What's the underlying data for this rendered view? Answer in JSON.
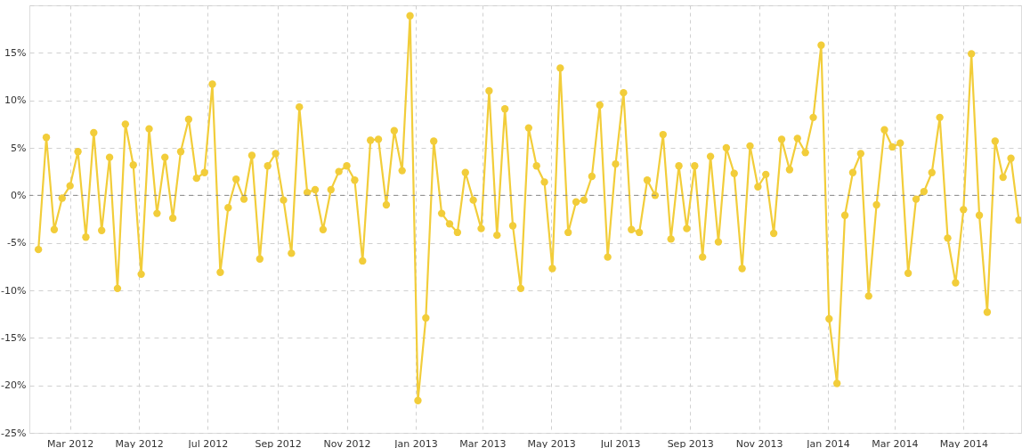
{
  "chart_data": {
    "type": "line",
    "x": [
      "2012-02-02",
      "2012-02-09",
      "2012-02-16",
      "2012-02-23",
      "2012-03-01",
      "2012-03-08",
      "2012-03-15",
      "2012-03-22",
      "2012-03-29",
      "2012-04-05",
      "2012-04-12",
      "2012-04-19",
      "2012-04-26",
      "2012-05-03",
      "2012-05-10",
      "2012-05-17",
      "2012-05-24",
      "2012-05-31",
      "2012-06-07",
      "2012-06-14",
      "2012-06-21",
      "2012-06-28",
      "2012-07-05",
      "2012-07-12",
      "2012-07-19",
      "2012-07-26",
      "2012-08-02",
      "2012-08-09",
      "2012-08-16",
      "2012-08-23",
      "2012-08-30",
      "2012-09-06",
      "2012-09-13",
      "2012-09-20",
      "2012-09-27",
      "2012-10-04",
      "2012-10-11",
      "2012-10-18",
      "2012-10-25",
      "2012-11-01",
      "2012-11-08",
      "2012-11-15",
      "2012-11-22",
      "2012-11-29",
      "2012-12-06",
      "2012-12-13",
      "2012-12-20",
      "2012-12-27",
      "2013-01-03",
      "2013-01-10",
      "2013-01-17",
      "2013-01-24",
      "2013-01-31",
      "2013-02-07",
      "2013-02-14",
      "2013-02-21",
      "2013-02-28",
      "2013-03-07",
      "2013-03-14",
      "2013-03-21",
      "2013-03-28",
      "2013-04-04",
      "2013-04-11",
      "2013-04-18",
      "2013-04-25",
      "2013-05-02",
      "2013-05-09",
      "2013-05-16",
      "2013-05-23",
      "2013-05-30",
      "2013-06-06",
      "2013-06-13",
      "2013-06-20",
      "2013-06-27",
      "2013-07-04",
      "2013-07-11",
      "2013-07-18",
      "2013-07-25",
      "2013-08-01",
      "2013-08-08",
      "2013-08-15",
      "2013-08-22",
      "2013-08-29",
      "2013-09-05",
      "2013-09-12",
      "2013-09-19",
      "2013-09-26",
      "2013-10-03",
      "2013-10-10",
      "2013-10-17",
      "2013-10-24",
      "2013-10-31",
      "2013-11-07",
      "2013-11-14",
      "2013-11-21",
      "2013-11-28",
      "2013-12-05",
      "2013-12-12",
      "2013-12-19",
      "2013-12-26",
      "2014-01-02",
      "2014-01-09",
      "2014-01-16",
      "2014-01-23",
      "2014-01-30",
      "2014-02-06",
      "2014-02-13",
      "2014-02-20",
      "2014-02-27",
      "2014-03-06",
      "2014-03-13",
      "2014-03-20",
      "2014-03-27",
      "2014-04-03",
      "2014-04-10",
      "2014-04-17",
      "2014-04-24",
      "2014-05-01",
      "2014-05-08",
      "2014-05-15",
      "2014-05-22",
      "2014-05-29",
      "2014-06-05",
      "2014-06-12",
      "2014-06-19"
    ],
    "series": [
      {
        "color": "#f2cd3a",
        "values": [
          -5.7,
          6.1,
          -3.6,
          -0.3,
          1.0,
          4.6,
          -4.4,
          6.6,
          -3.7,
          4.0,
          -9.8,
          7.5,
          3.2,
          -8.3,
          7.0,
          -1.9,
          4.0,
          -2.4,
          4.6,
          8.0,
          1.8,
          2.4,
          11.7,
          -8.1,
          -1.3,
          1.7,
          -0.4,
          4.2,
          -6.7,
          3.1,
          4.4,
          -0.5,
          -6.1,
          9.3,
          0.3,
          0.6,
          -3.6,
          0.6,
          2.5,
          3.1,
          1.6,
          -6.9,
          5.8,
          5.9,
          -1.0,
          6.8,
          2.6,
          18.9,
          -21.6,
          -12.9,
          5.7,
          -1.9,
          -3.0,
          -3.9,
          2.4,
          -0.5,
          -3.5,
          11.0,
          -4.2,
          9.1,
          -3.2,
          -9.8,
          7.1,
          3.1,
          1.4,
          -7.7,
          13.4,
          -3.9,
          -0.7,
          -0.5,
          2.0,
          9.5,
          -6.5,
          3.3,
          10.8,
          -3.6,
          -3.9,
          1.6,
          0.0,
          6.4,
          -4.6,
          3.1,
          -3.5,
          3.1,
          -6.5,
          4.1,
          -4.9,
          5.0,
          2.3,
          -7.7,
          5.2,
          0.9,
          2.2,
          -4.0,
          5.9,
          2.7,
          6.0,
          4.5,
          8.2,
          15.8,
          -13.0,
          -19.8,
          -2.1,
          2.4,
          4.4,
          -10.6,
          -1.0,
          6.9,
          5.1,
          5.5,
          -8.2,
          -0.4,
          0.4,
          2.4,
          8.2,
          -4.5,
          -9.2,
          -1.5,
          14.9,
          -2.1,
          -12.3,
          5.7,
          1.9,
          3.9,
          -2.6
        ]
      }
    ],
    "xlim": [
      "2012-01-25",
      "2014-06-21"
    ],
    "xticks": [
      {
        "value": "2012-03-01",
        "label": "Mar 2012"
      },
      {
        "value": "2012-05-01",
        "label": "May 2012"
      },
      {
        "value": "2012-07-01",
        "label": "Jul 2012"
      },
      {
        "value": "2012-09-01",
        "label": "Sep 2012"
      },
      {
        "value": "2012-11-01",
        "label": "Nov 2012"
      },
      {
        "value": "2013-01-01",
        "label": "Jan 2013"
      },
      {
        "value": "2013-03-01",
        "label": "Mar 2013"
      },
      {
        "value": "2013-05-01",
        "label": "May 2013"
      },
      {
        "value": "2013-07-01",
        "label": "Jul 2013"
      },
      {
        "value": "2013-09-01",
        "label": "Sep 2013"
      },
      {
        "value": "2013-11-01",
        "label": "Nov 2013"
      },
      {
        "value": "2014-01-01",
        "label": "Jan 2014"
      },
      {
        "value": "2014-03-01",
        "label": "Mar 2014"
      },
      {
        "value": "2014-05-01",
        "label": "May 2014"
      }
    ],
    "ylim": [
      -25,
      20
    ],
    "yticks": [
      {
        "value": -25,
        "label": "-25%"
      },
      {
        "value": -20,
        "label": "-20%"
      },
      {
        "value": -15,
        "label": "-15%"
      },
      {
        "value": -10,
        "label": "-10%"
      },
      {
        "value": -5,
        "label": "-5%"
      },
      {
        "value": 0,
        "label": "0%"
      },
      {
        "value": 5,
        "label": "5%"
      },
      {
        "value": 10,
        "label": "10%"
      },
      {
        "value": 15,
        "label": "15%"
      },
      {
        "value": 20,
        "label": null
      }
    ],
    "grid": true,
    "marker": "circle",
    "line_style": "solid",
    "legend": false,
    "ref_lines": [
      {
        "axis": "y",
        "value": 0,
        "color": "#888888",
        "line_style": "dashed"
      }
    ]
  }
}
